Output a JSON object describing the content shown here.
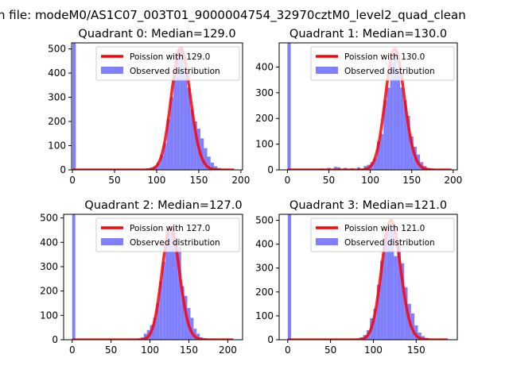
{
  "suptitle": "n file: modeM0/AS1C07_003T01_9000004754_32970cztM0_level2_quad_clean",
  "colors": {
    "curve": "#ff0000",
    "hist": "#8080ff"
  },
  "chart_data": [
    {
      "type": "bar",
      "title": "Quadrant 0: Median=129.0",
      "lambda": 129.0,
      "scale": 14250,
      "legend": [
        "Poission with 129.0",
        "Observed distribution"
      ],
      "legend_position": "top-right",
      "xlim": [
        -1,
        202
      ],
      "ylim": [
        0,
        525
      ],
      "xticks": [
        0,
        50,
        100,
        150,
        200
      ],
      "yticks": [
        0,
        100,
        200,
        300,
        400,
        500
      ],
      "bin_width": 4,
      "curve_range": [
        0,
        192
      ],
      "bins": [
        [
          0,
          600
        ],
        [
          88,
          5
        ],
        [
          92,
          10
        ],
        [
          96,
          15
        ],
        [
          100,
          30
        ],
        [
          104,
          60
        ],
        [
          108,
          110
        ],
        [
          112,
          210
        ],
        [
          116,
          300
        ],
        [
          120,
          390
        ],
        [
          124,
          500
        ],
        [
          128,
          510
        ],
        [
          132,
          410
        ],
        [
          136,
          340
        ],
        [
          140,
          250
        ],
        [
          144,
          200
        ],
        [
          148,
          170
        ],
        [
          152,
          130
        ],
        [
          156,
          90
        ],
        [
          160,
          55
        ],
        [
          164,
          30
        ],
        [
          168,
          15
        ],
        [
          172,
          8
        ],
        [
          176,
          3
        ]
      ]
    },
    {
      "type": "bar",
      "title": "Quadrant 1: Median=130.0",
      "lambda": 130.0,
      "scale": 13430,
      "legend": [
        "Poission with 130.0",
        "Observed distribution"
      ],
      "legend_position": "top-right",
      "xlim": [
        -10,
        205
      ],
      "ylim": [
        0,
        494
      ],
      "xticks": [
        0,
        50,
        100,
        150,
        200
      ],
      "yticks": [
        0,
        100,
        200,
        300,
        400
      ],
      "bin_width": 4,
      "curve_range": [
        0,
        198
      ],
      "bins": [
        [
          0,
          600
        ],
        [
          40,
          5
        ],
        [
          48,
          8
        ],
        [
          56,
          12
        ],
        [
          60,
          10
        ],
        [
          68,
          8
        ],
        [
          76,
          6
        ],
        [
          84,
          10
        ],
        [
          92,
          15
        ],
        [
          96,
          20
        ],
        [
          100,
          30
        ],
        [
          104,
          45
        ],
        [
          108,
          110
        ],
        [
          112,
          140
        ],
        [
          116,
          270
        ],
        [
          120,
          320
        ],
        [
          124,
          420
        ],
        [
          128,
          455
        ],
        [
          132,
          380
        ],
        [
          136,
          320
        ],
        [
          140,
          270
        ],
        [
          144,
          210
        ],
        [
          148,
          130
        ],
        [
          152,
          90
        ],
        [
          156,
          60
        ],
        [
          160,
          30
        ],
        [
          164,
          15
        ],
        [
          168,
          8
        ],
        [
          172,
          4
        ]
      ]
    },
    {
      "type": "bar",
      "title": "Quadrant 2: Median=127.0",
      "lambda": 127.0,
      "scale": 13000,
      "legend": [
        "Poission with 127.0",
        "Observed distribution"
      ],
      "legend_position": "top-right",
      "xlim": [
        -11,
        219
      ],
      "ylim": [
        0,
        515
      ],
      "xticks": [
        0,
        50,
        100,
        150,
        200
      ],
      "yticks": [
        0,
        100,
        200,
        300,
        400,
        500
      ],
      "bin_width": 4,
      "curve_range": [
        0,
        207
      ],
      "bins": [
        [
          0,
          600
        ],
        [
          84,
          5
        ],
        [
          88,
          10
        ],
        [
          92,
          25
        ],
        [
          96,
          40
        ],
        [
          100,
          60
        ],
        [
          104,
          90
        ],
        [
          108,
          150
        ],
        [
          112,
          240
        ],
        [
          116,
          320
        ],
        [
          120,
          450
        ],
        [
          124,
          440
        ],
        [
          128,
          455
        ],
        [
          132,
          420
        ],
        [
          136,
          380
        ],
        [
          140,
          220
        ],
        [
          144,
          180
        ],
        [
          148,
          130
        ],
        [
          152,
          90
        ],
        [
          156,
          45
        ],
        [
          160,
          25
        ],
        [
          164,
          10
        ],
        [
          168,
          4
        ]
      ]
    },
    {
      "type": "bar",
      "title": "Quadrant 3: Median=121.0",
      "lambda": 121.0,
      "scale": 13780,
      "legend": [
        "Poission with 121.0",
        "Observed distribution"
      ],
      "legend_position": "top-right",
      "xlim": [
        -10,
        198
      ],
      "ylim": [
        0,
        525
      ],
      "xticks": [
        0,
        50,
        100,
        150
      ],
      "yticks": [
        0,
        100,
        200,
        300,
        400,
        500
      ],
      "bin_width": 4,
      "curve_range": [
        0,
        187
      ],
      "bins": [
        [
          0,
          600
        ],
        [
          84,
          10
        ],
        [
          88,
          20
        ],
        [
          92,
          40
        ],
        [
          96,
          90
        ],
        [
          100,
          130
        ],
        [
          104,
          230
        ],
        [
          108,
          330
        ],
        [
          112,
          440
        ],
        [
          116,
          470
        ],
        [
          120,
          460
        ],
        [
          124,
          350
        ],
        [
          128,
          400
        ],
        [
          132,
          320
        ],
        [
          136,
          220
        ],
        [
          140,
          150
        ],
        [
          144,
          110
        ],
        [
          148,
          60
        ],
        [
          152,
          30
        ],
        [
          156,
          15
        ],
        [
          160,
          8
        ]
      ]
    }
  ]
}
